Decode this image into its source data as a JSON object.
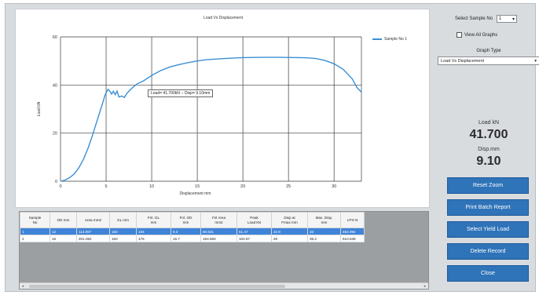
{
  "chart": {
    "title": "Load Vs Displacement",
    "tooltip": "Load= 41.700kN -- Disp= 9.10mm"
  },
  "chart_data": {
    "type": "line",
    "title": "Load Vs Displacement",
    "xlabel": "Displacement mm",
    "ylabel": "Load kN",
    "xlim": [
      0,
      33
    ],
    "ylim": [
      0,
      60
    ],
    "xticks": [
      0,
      5,
      10,
      15,
      20,
      25,
      30
    ],
    "yticks": [
      0,
      20,
      40,
      60
    ],
    "grid": true,
    "legend_position": "top-right",
    "series": [
      {
        "name": "Sample No 1",
        "color": "#3b8fd6",
        "x": [
          0,
          0.5,
          1,
          1.5,
          2,
          2.5,
          3,
          3.5,
          4,
          4.5,
          4.9,
          5.2,
          5.4,
          5.6,
          5.8,
          6.0,
          6.2,
          6.4,
          6.7,
          7.0,
          7.3,
          7.6,
          8.0,
          8.4,
          8.8,
          9.1,
          10,
          11,
          12,
          13,
          14,
          15,
          16,
          18,
          20,
          22,
          24,
          26,
          27,
          28,
          29,
          30,
          31,
          32,
          32.5,
          33
        ],
        "y": [
          0,
          0.5,
          1.5,
          3,
          5.5,
          9,
          13.5,
          19,
          25,
          31,
          36,
          38.2,
          37.5,
          36.2,
          37.4,
          36,
          37.5,
          35,
          35.4,
          34.8,
          36.6,
          37.8,
          39.2,
          40.5,
          41.2,
          41.7,
          44,
          46,
          47.5,
          48.5,
          49.3,
          50,
          50.5,
          51,
          51.4,
          51.5,
          51.5,
          51.4,
          51.3,
          51,
          50.2,
          48.8,
          46.5,
          42.5,
          39,
          37
        ]
      }
    ]
  },
  "table": {
    "headers": [
      [
        "Sample",
        "No"
      ],
      [
        "OD mm"
      ],
      [
        "Area mm2"
      ],
      [
        "GL mm"
      ],
      [
        "Fnl. GL",
        "mm"
      ],
      [
        "Fnl. OD",
        "mm"
      ],
      [
        "Fnl Area",
        "mm2"
      ],
      [
        "Peak",
        "Load kN"
      ],
      [
        "Disp at",
        "Fmax mm"
      ],
      [
        "Max. Disp.",
        "mm"
      ],
      [
        "UTS N"
      ]
    ],
    "rows": [
      [
        "1",
        "12",
        "113.097",
        "150",
        "184",
        "9.3",
        "60.621",
        "51.47",
        "22.8",
        "33",
        "454.994"
      ],
      [
        "2",
        "16",
        "201.062",
        "150",
        "176",
        "15.7",
        "193.593",
        "102.67",
        "26",
        "35.2",
        "510.639"
      ]
    ]
  },
  "side": {
    "select_label": "Select Sample No",
    "select_value": "1",
    "view_all_label": "View All Graphs",
    "graph_type_label": "Graph Type",
    "graph_type_value": "Load Vs Displacement",
    "load_label": "Load kN",
    "load_value": "41.700",
    "disp_label": "Disp.mm",
    "disp_value": "9.10"
  },
  "buttons": {
    "reset_zoom": "Reset Zoom",
    "print_batch": "Print Batch Report",
    "select_yield": "Select Yield Load",
    "delete_record": "Delete Record",
    "close": "Close"
  },
  "icons": {
    "dropdown": "chevron-down-icon",
    "scroll_left": "arrow-left-icon",
    "scroll_right": "arrow-right-icon"
  },
  "colors": {
    "series": "#3b8fd6",
    "button": "#2f73b9",
    "selected_row": "#3f84d8",
    "window_bg": "#d9dcdf"
  }
}
